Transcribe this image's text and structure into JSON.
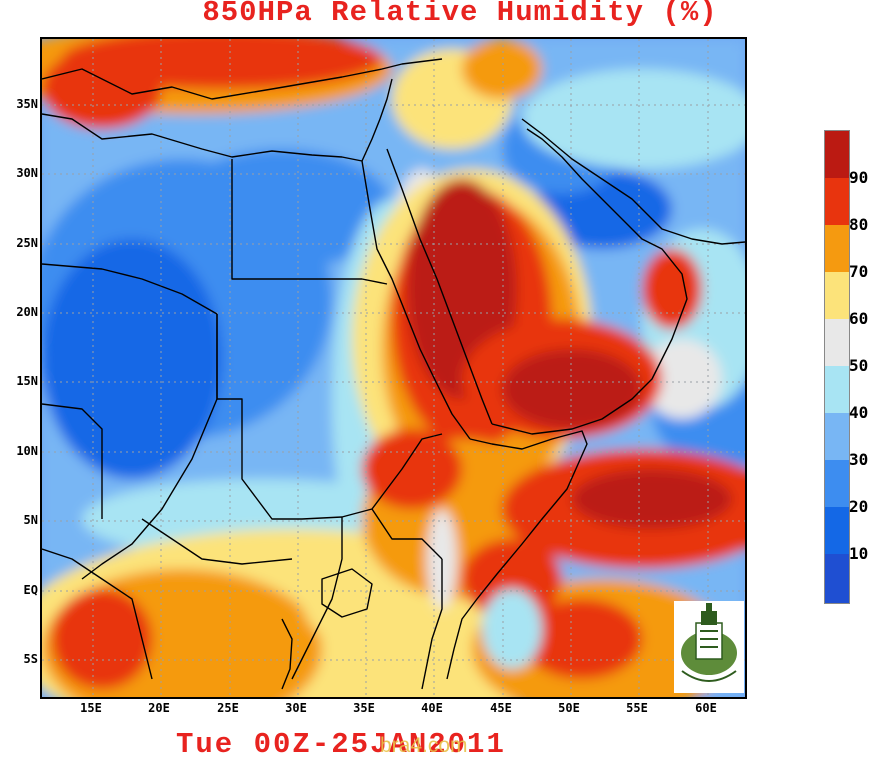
{
  "title": "850HPa Relative Humidity (%)",
  "footer": {
    "date_text": "Tue 00Z-25JAN2011",
    "watermark": "bra4.com"
  },
  "map": {
    "lat_labels": [
      "35N",
      "30N",
      "25N",
      "20N",
      "15N",
      "10N",
      "5N",
      "EQ",
      "5S"
    ],
    "lon_labels": [
      "15E",
      "20E",
      "25E",
      "30E",
      "35E",
      "40E",
      "45E",
      "50E",
      "55E",
      "60E"
    ],
    "region": "East Africa & Middle East"
  },
  "colorbar": {
    "levels": [
      "90",
      "80",
      "70",
      "60",
      "50",
      "40",
      "30",
      "20",
      "10"
    ],
    "colors": [
      "#bb1a12",
      "#e8340e",
      "#f59a10",
      "#fce37a",
      "#e8e8e8",
      "#a8e4f3",
      "#78b6f4",
      "#3d8df0",
      "#1468e6",
      "#1f4fd2"
    ]
  },
  "logo": {
    "name": "university-emblem"
  }
}
